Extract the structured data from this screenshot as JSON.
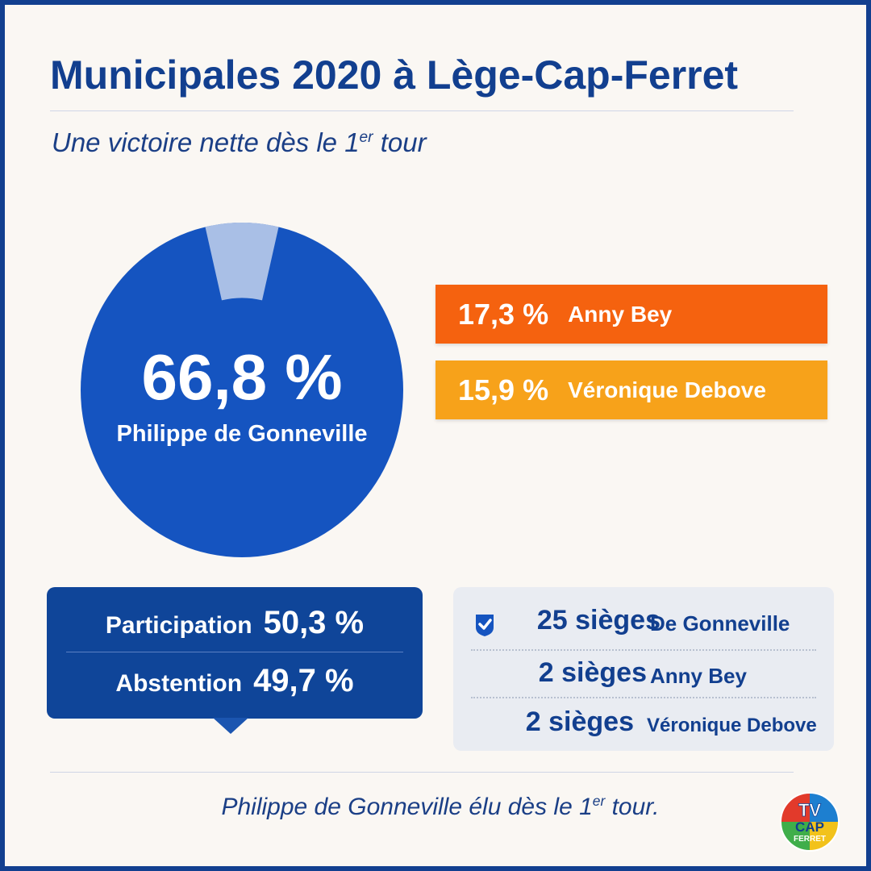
{
  "header": {
    "title": "Municipales 2020 à Lège-Cap-Ferret",
    "subtitle_main": "Une victoire nette dès le 1",
    "subtitle_sup": "er",
    "subtitle_end": " tour"
  },
  "winner": {
    "percent": "66,8 %",
    "name": "Philippe de Gonneville"
  },
  "candidates": [
    {
      "percent": "17,3 %",
      "name": "Anny Bey",
      "color": "#f5620f"
    },
    {
      "percent": "15,9 %",
      "name": "Véronique Debove",
      "color": "#f7a21a"
    }
  ],
  "turnout": {
    "participation_label": "Participation",
    "participation_value": "50,3 %",
    "abstention_label": "Abstention",
    "abstention_value": "49,7 %"
  },
  "seats": [
    {
      "value": "25 sièges",
      "name": "De Gonneville",
      "icon": "check-shield-icon"
    },
    {
      "value": "2 sièges",
      "name": "Anny Bey"
    },
    {
      "value": "2 sièges",
      "name": "Véronique Debove"
    }
  ],
  "footer": {
    "text_main": "Philippe de Gonneville élu dès le 1",
    "text_sup": "er",
    "text_end": " tour."
  },
  "logo": {
    "line1": "TV",
    "line2": "CAP",
    "line3": "FERRET"
  },
  "colors": {
    "primary": "#123f8f",
    "pie_main": "#1554c0",
    "pie_slice": "#c3d2ec",
    "candidate_1": "#f5620f",
    "candidate_2": "#f7a21a"
  },
  "chart_data": {
    "type": "pie",
    "categories": [
      "Philippe de Gonneville",
      "Anny Bey",
      "Véronique Debove"
    ],
    "values": [
      66.8,
      17.3,
      15.9
    ],
    "title": "Municipales 2020 à Lège-Cap-Ferret",
    "highlighted": "Philippe de Gonneville"
  }
}
